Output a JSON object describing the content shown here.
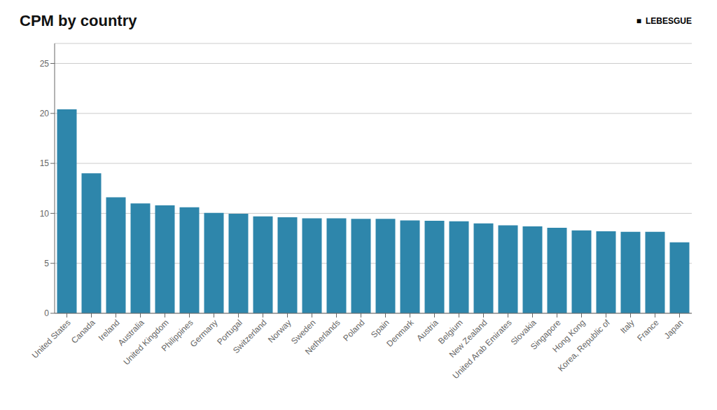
{
  "chart_data": {
    "type": "bar",
    "title": "CPM by country",
    "categories": [
      "United States",
      "Canada",
      "Ireland",
      "Australia",
      "United Kingdom",
      "Philippines",
      "Germany",
      "Portugal",
      "Switzerland",
      "Norway",
      "Sweden",
      "Netherlands",
      "Poland",
      "Spain",
      "Denmark",
      "Austria",
      "Belgium",
      "New Zealand",
      "United Arab Emirates",
      "Slovakia",
      "Singapore",
      "Hong Kong",
      "Korea, Republic of",
      "Italy",
      "France",
      "Japan"
    ],
    "values": [
      20.4,
      14.0,
      11.6,
      11.0,
      10.8,
      10.6,
      10.05,
      9.95,
      9.7,
      9.6,
      9.5,
      9.5,
      9.45,
      9.45,
      9.3,
      9.25,
      9.2,
      9.0,
      8.8,
      8.7,
      8.55,
      8.3,
      8.2,
      8.15,
      8.15,
      7.1
    ],
    "color": "#2e86ab",
    "ylim": [
      0,
      27
    ],
    "yticks": [
      0,
      5,
      10,
      15,
      20,
      25
    ],
    "grid": true,
    "annotations": [
      "■",
      "LEBESGUE"
    ]
  }
}
